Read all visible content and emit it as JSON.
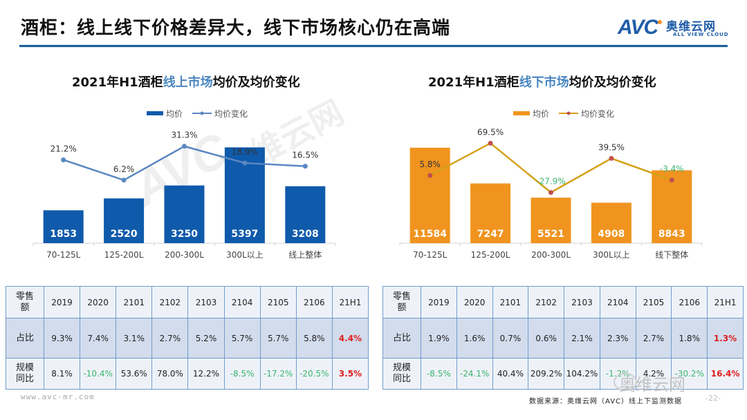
{
  "slide": {
    "title": "酒柜：线上线下价格差异大，线下市场核心仍在高端",
    "logo_text": "AVC",
    "logo_cn": "奥维云网",
    "logo_en": "ALL VIEW CLOUD",
    "watermark_text": "AVC",
    "watermark_cn": "奥维云网",
    "site_url": "www.avc-mr.com",
    "source": "数据来源：奥维云网（AVC）线上下监测数据",
    "page_number": "-22-",
    "wechat_mark": "奥维云网"
  },
  "colors": {
    "online_bar": "#0f5aab",
    "online_line": "#5b87c2",
    "offline_bar": "#f0941f",
    "offline_line": "#d4a017",
    "offline_marker": "#c0504d",
    "negative": "#3bb56f",
    "highlight": "#e01e1e",
    "title_highlight": "#4a86c0",
    "header_rule": "#1f5f95"
  },
  "chart_data": [
    {
      "type": "bar",
      "title_prefix": "2021年H1酒柜",
      "title_highlight": "线上市场",
      "title_suffix": "均价及均价变化",
      "categories": [
        "70-125L",
        "125-200L",
        "200-300L",
        "300L以上",
        "线上整体"
      ],
      "series": [
        {
          "name": "均价",
          "type": "bar",
          "values": [
            1853,
            2520,
            3250,
            5397,
            3208
          ],
          "labels": [
            "1853",
            "2520",
            "3250",
            "5397",
            "3208"
          ]
        },
        {
          "name": "均价变化",
          "type": "line",
          "values": [
            21.2,
            6.2,
            31.3,
            18.9,
            16.5
          ],
          "labels": [
            "21.2%",
            "6.2%",
            "31.3%",
            "18.9%",
            "16.5%"
          ]
        }
      ],
      "legend": "top-center",
      "bar_ylim": [
        0,
        6500
      ],
      "line_ylim": [
        -60,
        45
      ]
    },
    {
      "type": "bar",
      "title_prefix": "2021年H1酒柜",
      "title_highlight": "线下市场",
      "title_suffix": "均价及均价变化",
      "categories": [
        "70-125L",
        "125-200L",
        "200-300L",
        "300L以上",
        "线下整体"
      ],
      "series": [
        {
          "name": "均价",
          "type": "bar",
          "values": [
            11584,
            7247,
            5521,
            4908,
            8843
          ],
          "labels": [
            "11584",
            "7247",
            "5521",
            "4908",
            "8843"
          ]
        },
        {
          "name": "均价变化",
          "type": "line",
          "values": [
            5.8,
            69.5,
            -27.9,
            39.5,
            -3.4
          ],
          "labels": [
            "5.8%",
            "69.5%",
            "-27.9%",
            "39.5%",
            "-3.4%"
          ]
        }
      ],
      "legend": "top-center",
      "bar_ylim": [
        0,
        14000
      ],
      "line_ylim": [
        -180,
        100
      ]
    }
  ],
  "tables": {
    "left": {
      "corner": "零售额",
      "columns": [
        "2019",
        "2020",
        "2101",
        "2102",
        "2103",
        "2104",
        "2105",
        "2106",
        "21H1"
      ],
      "rows": [
        {
          "label": "占比",
          "values": [
            "9.3%",
            "7.4%",
            "3.1%",
            "2.7%",
            "5.2%",
            "5.7%",
            "5.7%",
            "5.8%",
            "4.4%"
          ]
        },
        {
          "label": "规模同比",
          "values": [
            "8.1%",
            "-10.4%",
            "53.6%",
            "78.0%",
            "12.2%",
            "-8.5%",
            "-17.2%",
            "-20.5%",
            "3.5%"
          ]
        }
      ]
    },
    "right": {
      "corner": "零售额",
      "columns": [
        "2019",
        "2020",
        "2101",
        "2102",
        "2103",
        "2104",
        "2105",
        "2106",
        "21H1"
      ],
      "rows": [
        {
          "label": "占比",
          "values": [
            "1.9%",
            "1.6%",
            "0.7%",
            "0.6%",
            "2.1%",
            "2.3%",
            "2.7%",
            "1.8%",
            "1.3%"
          ]
        },
        {
          "label": "规模同比",
          "values": [
            "-8.5%",
            "-24.1%",
            "40.4%",
            "209.2%",
            "104.2%",
            "-1.2%",
            "4.2%",
            "-30.2%",
            "16.4%"
          ]
        }
      ]
    }
  }
}
